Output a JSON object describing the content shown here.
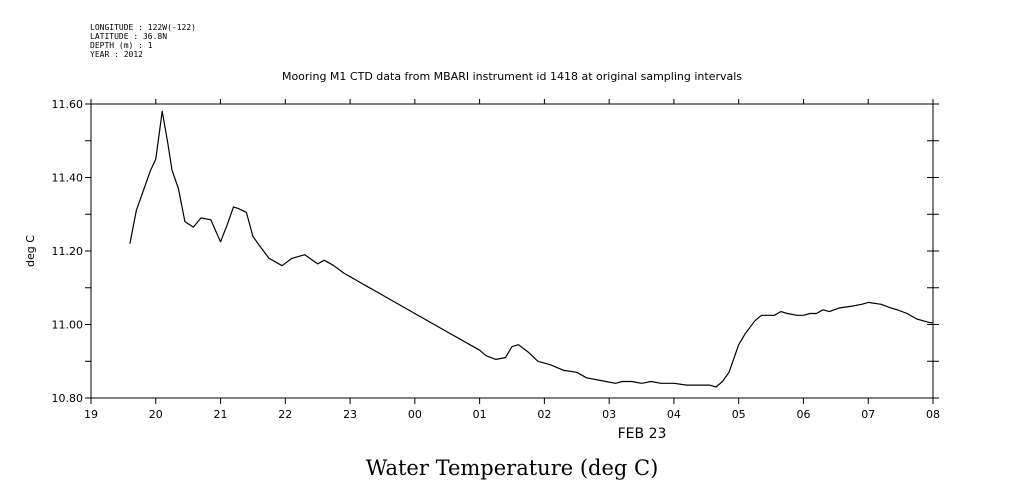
{
  "header": {
    "lines": [
      "LONGITUDE : 122W(-122)",
      "LATITUDE : 36.8N",
      "DEPTH (m) : 1",
      "YEAR : 2012"
    ]
  },
  "chart_data": {
    "type": "line",
    "title": "Mooring M1 CTD data from MBARI instrument id 1418 at original sampling intervals",
    "ylabel": "deg C",
    "xlabel": "FEB 23",
    "footer_title": "Water Temperature (deg C)",
    "xlim": [
      0,
      13
    ],
    "ylim": [
      10.8,
      11.6
    ],
    "x_ticks": [
      {
        "value": 0,
        "label": "19"
      },
      {
        "value": 1,
        "label": "20"
      },
      {
        "value": 2,
        "label": "21"
      },
      {
        "value": 3,
        "label": "22"
      },
      {
        "value": 4,
        "label": "23"
      },
      {
        "value": 5,
        "label": "00"
      },
      {
        "value": 6,
        "label": "01"
      },
      {
        "value": 7,
        "label": "02"
      },
      {
        "value": 8,
        "label": "03"
      },
      {
        "value": 9,
        "label": "04"
      },
      {
        "value": 10,
        "label": "05"
      },
      {
        "value": 11,
        "label": "06"
      },
      {
        "value": 12,
        "label": "07"
      },
      {
        "value": 13,
        "label": "08"
      }
    ],
    "y_ticks": [
      {
        "value": 10.8,
        "label": "10.80"
      },
      {
        "value": 11.0,
        "label": "11.00"
      },
      {
        "value": 11.2,
        "label": "11.20"
      },
      {
        "value": 11.4,
        "label": "11.40"
      },
      {
        "value": 11.6,
        "label": "11.60"
      }
    ],
    "y_minor_step": 0.1,
    "grid": false,
    "series": [
      {
        "color": "#000000",
        "x": [
          0.6,
          0.7,
          0.8,
          0.92,
          1.0,
          1.1,
          1.18,
          1.25,
          1.35,
          1.45,
          1.58,
          1.7,
          1.85,
          2.0,
          2.1,
          2.2,
          2.28,
          2.4,
          2.5,
          2.6,
          2.75,
          2.95,
          3.1,
          3.3,
          3.5,
          3.6,
          3.75,
          3.9,
          4.0,
          4.1,
          4.2,
          4.3,
          4.4,
          4.5,
          5.0,
          5.5,
          6.0,
          6.1,
          6.25,
          6.4,
          6.5,
          6.6,
          6.75,
          6.9,
          7.0,
          7.1,
          7.3,
          7.5,
          7.65,
          7.8,
          7.95,
          8.1,
          8.2,
          8.35,
          8.5,
          8.65,
          8.8,
          9.0,
          9.2,
          9.3,
          9.45,
          9.55,
          9.65,
          9.75,
          9.85,
          10.0,
          10.1,
          10.25,
          10.35,
          10.45,
          10.55,
          10.65,
          10.75,
          10.9,
          11.0,
          11.1,
          11.2,
          11.3,
          11.4,
          11.55,
          11.75,
          11.9,
          12.0,
          12.2,
          12.35,
          12.45,
          12.6,
          12.75,
          12.85,
          12.95,
          13.0
        ],
        "y": [
          11.22,
          11.31,
          11.36,
          11.42,
          11.45,
          11.58,
          11.5,
          11.42,
          11.37,
          11.28,
          11.265,
          11.29,
          11.285,
          11.225,
          11.27,
          11.32,
          11.315,
          11.305,
          11.24,
          11.215,
          11.18,
          11.16,
          11.18,
          11.19,
          11.165,
          11.175,
          11.16,
          11.14,
          11.13,
          11.12,
          11.11,
          11.1,
          11.09,
          11.08,
          11.03,
          10.98,
          10.93,
          10.915,
          10.905,
          10.91,
          10.94,
          10.945,
          10.925,
          10.9,
          10.895,
          10.89,
          10.875,
          10.87,
          10.855,
          10.85,
          10.845,
          10.84,
          10.845,
          10.845,
          10.84,
          10.845,
          10.84,
          10.84,
          10.835,
          10.835,
          10.835,
          10.835,
          10.83,
          10.845,
          10.87,
          10.945,
          10.975,
          11.01,
          11.025,
          11.025,
          11.025,
          11.035,
          11.03,
          11.025,
          11.025,
          11.03,
          11.03,
          11.04,
          11.035,
          11.045,
          11.05,
          11.055,
          11.06,
          11.055,
          11.045,
          11.04,
          11.03,
          11.015,
          11.01,
          11.005,
          11.005
        ]
      }
    ]
  }
}
